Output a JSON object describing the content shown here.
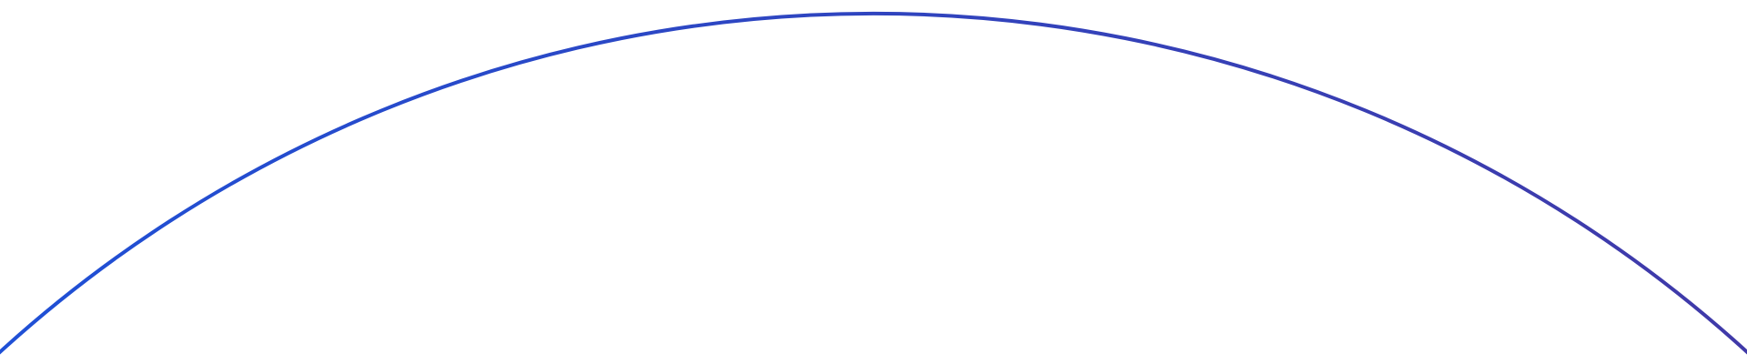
{
  "decoration": {
    "shape": "arc",
    "colors": {
      "start": "#1f50d6",
      "end": "#4039a8",
      "background": "#ffffff"
    }
  }
}
